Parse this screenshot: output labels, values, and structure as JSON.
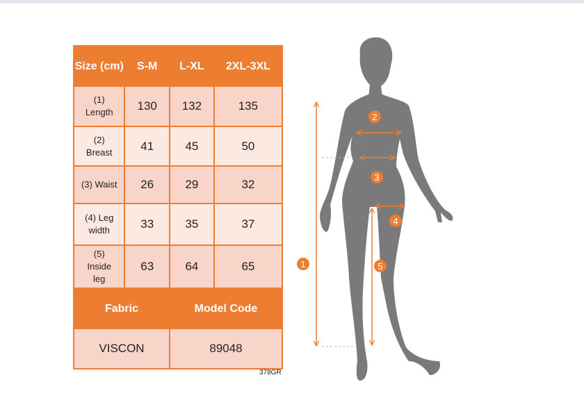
{
  "table": {
    "header": [
      "Size (cm)",
      "S-M",
      "L-XL",
      "2XL-3XL"
    ],
    "rows": [
      {
        "label": "(1) Length",
        "values": [
          "130",
          "132",
          "135"
        ]
      },
      {
        "label": "(2) Breast",
        "values": [
          "41",
          "45",
          "50"
        ]
      },
      {
        "label": "(3) Waist",
        "values": [
          "26",
          "29",
          "32"
        ]
      },
      {
        "label": "(4) Leg width",
        "values": [
          "33",
          "35",
          "37"
        ]
      },
      {
        "label": "(5) Inside leg",
        "values": [
          "63",
          "64",
          "65"
        ]
      }
    ],
    "footer_header": [
      "Fabric",
      "Model Code"
    ],
    "footer_values": [
      "VISCON",
      "89048"
    ]
  },
  "product_code": "378GR",
  "diagram": {
    "markers": [
      "1",
      "2",
      "3",
      "4",
      "5"
    ]
  },
  "colors": {
    "accent": "#ed7d31",
    "row_dark": "#f8d5c8",
    "row_light": "#fce9e1",
    "silhouette": "#7a7a7a"
  }
}
